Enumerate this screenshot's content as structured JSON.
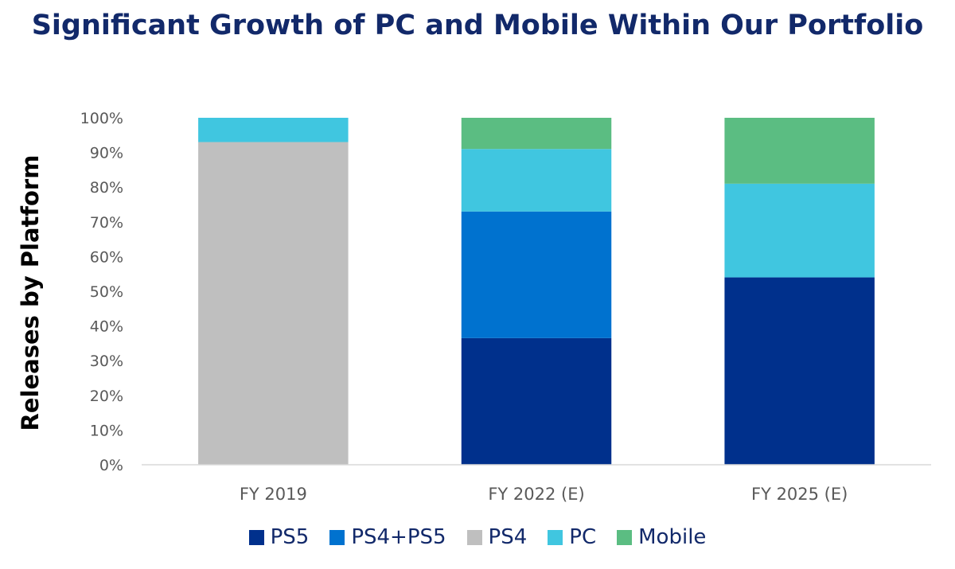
{
  "chart_data": {
    "type": "bar",
    "stacked": true,
    "title": "Significant Growth of PC and Mobile Within Our Portfolio",
    "ylabel": "Releases by Platform",
    "xlabel": "",
    "categories": [
      "FY 2019",
      "FY 2022 (E)",
      "FY 2025 (E)"
    ],
    "ylim": [
      0,
      100
    ],
    "y_ticks": [
      "0%",
      "10%",
      "20%",
      "30%",
      "40%",
      "50%",
      "60%",
      "70%",
      "80%",
      "90%",
      "100%"
    ],
    "series": [
      {
        "name": "PS5",
        "color": "#00308c",
        "values": [
          0,
          36.5,
          54
        ]
      },
      {
        "name": "PS4+PS5",
        "color": "#0072cf",
        "values": [
          0,
          36.5,
          0
        ]
      },
      {
        "name": "PS4",
        "color": "#bfbfbf",
        "values": [
          93,
          0,
          0
        ]
      },
      {
        "name": "PC",
        "color": "#40c6e0",
        "values": [
          7,
          18,
          27
        ]
      },
      {
        "name": "Mobile",
        "color": "#5bbd82",
        "values": [
          0,
          9,
          19
        ]
      }
    ],
    "grid": false,
    "legend_position": "bottom"
  }
}
